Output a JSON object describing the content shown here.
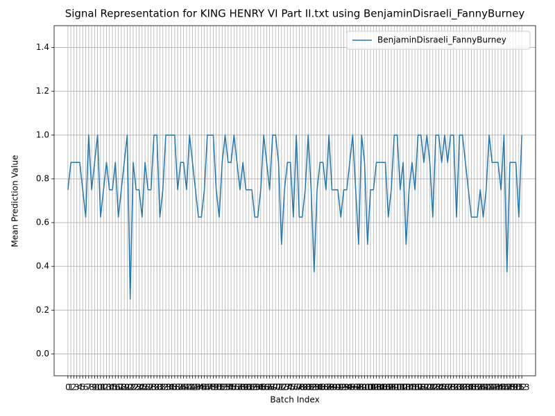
{
  "chart_data": {
    "type": "line",
    "title": "Signal Representation for KING HENRY VI Part II.txt using BenjaminDisraeli_FannyBurney",
    "x_label": "Batch Index",
    "y_label": "Mean Prediction Value",
    "series": [
      {
        "name": "BenjaminDisraeli_FannyBurney",
        "color": "#1f77b4",
        "values": [
          0.75,
          0.875,
          0.875,
          0.875,
          0.875,
          0.75,
          0.625,
          1.0,
          0.75,
          0.875,
          1.0,
          0.625,
          0.75,
          0.875,
          0.75,
          0.75,
          0.875,
          0.625,
          0.75,
          0.875,
          1.0,
          0.25,
          0.875,
          0.75,
          0.75,
          0.625,
          0.875,
          0.75,
          0.75,
          1.0,
          1.0,
          0.625,
          0.75,
          1.0,
          1.0,
          1.0,
          1.0,
          0.75,
          0.875,
          0.875,
          0.75,
          1.0,
          0.875,
          0.75,
          0.625,
          0.625,
          0.75,
          1.0,
          1.0,
          1.0,
          0.75,
          0.625,
          0.875,
          1.0,
          0.875,
          0.875,
          1.0,
          0.875,
          0.75,
          0.875,
          0.75,
          0.75,
          0.75,
          0.625,
          0.625,
          0.75,
          1.0,
          0.875,
          0.75,
          1.0,
          1.0,
          0.875,
          0.5,
          0.75,
          0.875,
          0.875,
          0.625,
          1.0,
          0.625,
          0.625,
          0.75,
          1.0,
          0.75,
          0.375,
          0.75,
          0.875,
          0.875,
          0.75,
          1.0,
          0.75,
          0.75,
          0.75,
          0.625,
          0.75,
          0.75,
          0.875,
          1.0,
          0.75,
          0.5,
          1.0,
          0.875,
          0.5,
          0.75,
          0.75,
          0.875,
          0.875,
          0.875,
          0.875,
          0.625,
          0.75,
          1.0,
          1.0,
          0.75,
          0.875,
          0.5,
          0.75,
          0.875,
          0.75,
          1.0,
          1.0,
          0.875,
          1.0,
          0.875,
          0.625,
          1.0,
          1.0,
          0.875,
          1.0,
          0.875,
          1.0,
          1.0,
          0.625,
          1.0,
          1.0,
          0.875,
          0.75,
          0.625,
          0.625,
          0.625,
          0.75,
          0.625,
          0.75,
          1.0,
          0.875,
          0.875,
          0.875,
          0.75,
          1.0,
          0.375,
          0.875,
          0.875,
          0.875,
          0.625,
          1.0
        ]
      }
    ],
    "xlim": [
      -4.65,
      157.65
    ],
    "xticks": [
      0,
      1,
      2,
      3,
      4,
      5,
      6,
      7,
      8,
      9,
      10,
      11,
      12,
      13,
      14,
      15,
      16,
      17,
      18,
      19,
      20,
      21,
      22,
      23,
      24,
      25,
      26,
      27,
      28,
      29,
      30,
      31,
      32,
      33,
      34,
      35,
      36,
      37,
      38,
      39,
      40,
      41,
      42,
      43,
      44,
      45,
      46,
      47,
      48,
      49,
      50,
      51,
      52,
      53,
      54,
      55,
      56,
      57,
      58,
      59,
      60,
      61,
      62,
      63,
      64,
      65,
      66,
      67,
      68,
      69,
      70,
      71,
      72,
      73,
      74,
      75,
      76,
      77,
      78,
      79,
      80,
      81,
      82,
      83,
      84,
      85,
      86,
      87,
      88,
      89,
      90,
      91,
      92,
      93,
      94,
      95,
      96,
      97,
      98,
      99,
      100,
      101,
      102,
      103,
      104,
      105,
      106,
      107,
      108,
      109,
      110,
      111,
      112,
      113,
      114,
      115,
      116,
      117,
      118,
      119,
      120,
      121,
      122,
      123,
      124,
      125,
      126,
      127,
      128,
      129,
      130,
      131,
      132,
      133,
      134,
      135,
      136,
      137,
      138,
      139,
      140,
      141,
      142,
      143,
      144,
      145,
      146,
      147,
      148,
      149,
      150,
      151,
      152,
      153
    ],
    "ylim": [
      -0.1,
      1.5
    ],
    "yticks": [
      {
        "value": 0,
        "label": "0.0"
      },
      0.2,
      0.4,
      0.6,
      0.8,
      {
        "value": 1,
        "label": "1.0"
      },
      1.2,
      1.4
    ],
    "grid": true,
    "legend": "upper right"
  }
}
